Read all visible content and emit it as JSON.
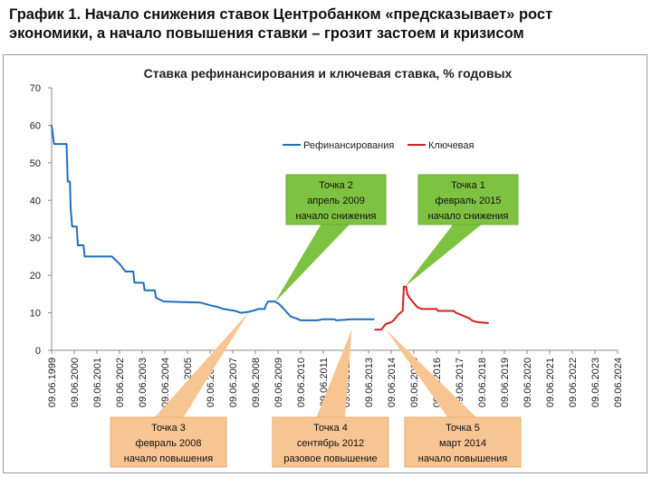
{
  "heading": {
    "line1": "График 1. Начало снижения ставок Центробанком «предсказывает» рост",
    "line2": "экономики, а начало повышения ставки – грозит застоем и кризисом"
  },
  "chart_data": {
    "type": "line",
    "title": "Ставка рефинансирования и ключевая ставка, % годовых",
    "xlabel": "",
    "ylabel": "",
    "ylim": [
      0,
      70
    ],
    "yticks": [
      "0",
      "10",
      "20",
      "30",
      "40",
      "50",
      "60",
      "70"
    ],
    "xlim": [
      1999.44,
      2024.44
    ],
    "xticks": [
      "09.06.1999",
      "09.06.2000",
      "09.06.2001",
      "09.06.2002",
      "09.06.2003",
      "09.06.2004",
      "09.06.2005",
      "09.06.2006",
      "09.06.2007",
      "09.06.2008",
      "09.06.2009",
      "09.06.2010",
      "09.06.2011",
      "09.06.2012",
      "09.06.2013",
      "09.06.2014",
      "09.06.2015",
      "09.06.2016",
      "09.06.2017",
      "09.06.2018",
      "09.06.2019",
      "09.06.2020",
      "09.06.2021",
      "09.06.2022",
      "09.06.2023",
      "09.06.2024"
    ],
    "grid": false,
    "legend_position": "top-center",
    "series": [
      {
        "name": "Рефинансирования",
        "color": "#1f6fba",
        "points": [
          [
            1999.44,
            60
          ],
          [
            1999.55,
            55
          ],
          [
            2000.1,
            55
          ],
          [
            2000.15,
            45
          ],
          [
            2000.25,
            45
          ],
          [
            2000.28,
            38
          ],
          [
            2000.35,
            33
          ],
          [
            2000.55,
            33
          ],
          [
            2000.6,
            28
          ],
          [
            2000.85,
            28
          ],
          [
            2000.9,
            25
          ],
          [
            2002.1,
            25
          ],
          [
            2002.45,
            23
          ],
          [
            2002.7,
            21
          ],
          [
            2003.05,
            21
          ],
          [
            2003.1,
            18
          ],
          [
            2003.5,
            18
          ],
          [
            2003.55,
            16
          ],
          [
            2004.0,
            16
          ],
          [
            2004.05,
            14
          ],
          [
            2004.4,
            13
          ],
          [
            2006.0,
            12.75
          ],
          [
            2006.45,
            12
          ],
          [
            2006.8,
            11.5
          ],
          [
            2007.05,
            11
          ],
          [
            2007.55,
            10.5
          ],
          [
            2007.8,
            10
          ],
          [
            2008.15,
            10.25
          ],
          [
            2008.3,
            10.5
          ],
          [
            2008.45,
            10.75
          ],
          [
            2008.55,
            11
          ],
          [
            2008.85,
            11
          ],
          [
            2008.9,
            12
          ],
          [
            2009.0,
            13
          ],
          [
            2009.3,
            13
          ],
          [
            2009.45,
            12.5
          ],
          [
            2009.55,
            12
          ],
          [
            2009.7,
            11
          ],
          [
            2009.85,
            10
          ],
          [
            2010.0,
            9
          ],
          [
            2010.25,
            8.5
          ],
          [
            2010.45,
            8
          ],
          [
            2011.2,
            8
          ],
          [
            2011.4,
            8.25
          ],
          [
            2011.95,
            8.25
          ],
          [
            2012.0,
            8
          ],
          [
            2012.7,
            8.25
          ],
          [
            2013.7,
            8.25
          ]
        ]
      },
      {
        "name": "Ключевая",
        "color": "#cc2222",
        "points": [
          [
            2013.7,
            5.5
          ],
          [
            2014.0,
            5.5
          ],
          [
            2014.2,
            7
          ],
          [
            2014.45,
            7.5
          ],
          [
            2014.55,
            8
          ],
          [
            2014.75,
            9.5
          ],
          [
            2014.95,
            10.5
          ],
          [
            2015.0,
            17
          ],
          [
            2015.1,
            17
          ],
          [
            2015.15,
            15
          ],
          [
            2015.25,
            14
          ],
          [
            2015.45,
            12.5
          ],
          [
            2015.6,
            11.5
          ],
          [
            2015.8,
            11
          ],
          [
            2016.45,
            11
          ],
          [
            2016.5,
            10.5
          ],
          [
            2017.2,
            10.5
          ],
          [
            2017.3,
            10
          ],
          [
            2017.5,
            9.5
          ],
          [
            2017.7,
            9
          ],
          [
            2017.9,
            8.5
          ],
          [
            2018.0,
            8
          ],
          [
            2018.1,
            7.75
          ],
          [
            2018.25,
            7.5
          ],
          [
            2018.75,
            7.25
          ]
        ]
      }
    ],
    "annotations": [
      {
        "lines": [
          "Точка 2",
          "апрель 2009",
          "начало снижения"
        ],
        "color": "green",
        "target_x": 2009.3,
        "target_y": 12.8
      },
      {
        "lines": [
          "Точка 1",
          "февраль 2015",
          "начало снижения"
        ],
        "color": "green",
        "target_x": 2015.05,
        "target_y": 17
      },
      {
        "lines": [
          "Точка 3",
          "февраль 2008",
          "начало повышения"
        ],
        "color": "orange",
        "target_x": 2008.15,
        "target_y": 10.2
      },
      {
        "lines": [
          "Точка 4",
          "сентябрь 2012",
          "разовое повышение"
        ],
        "color": "orange",
        "target_x": 2012.7,
        "target_y": 5.6
      },
      {
        "lines": [
          "Точка 5",
          "март 2014",
          "начало повышения"
        ],
        "color": "orange",
        "target_x": 2014.2,
        "target_y": 5.6
      }
    ]
  }
}
